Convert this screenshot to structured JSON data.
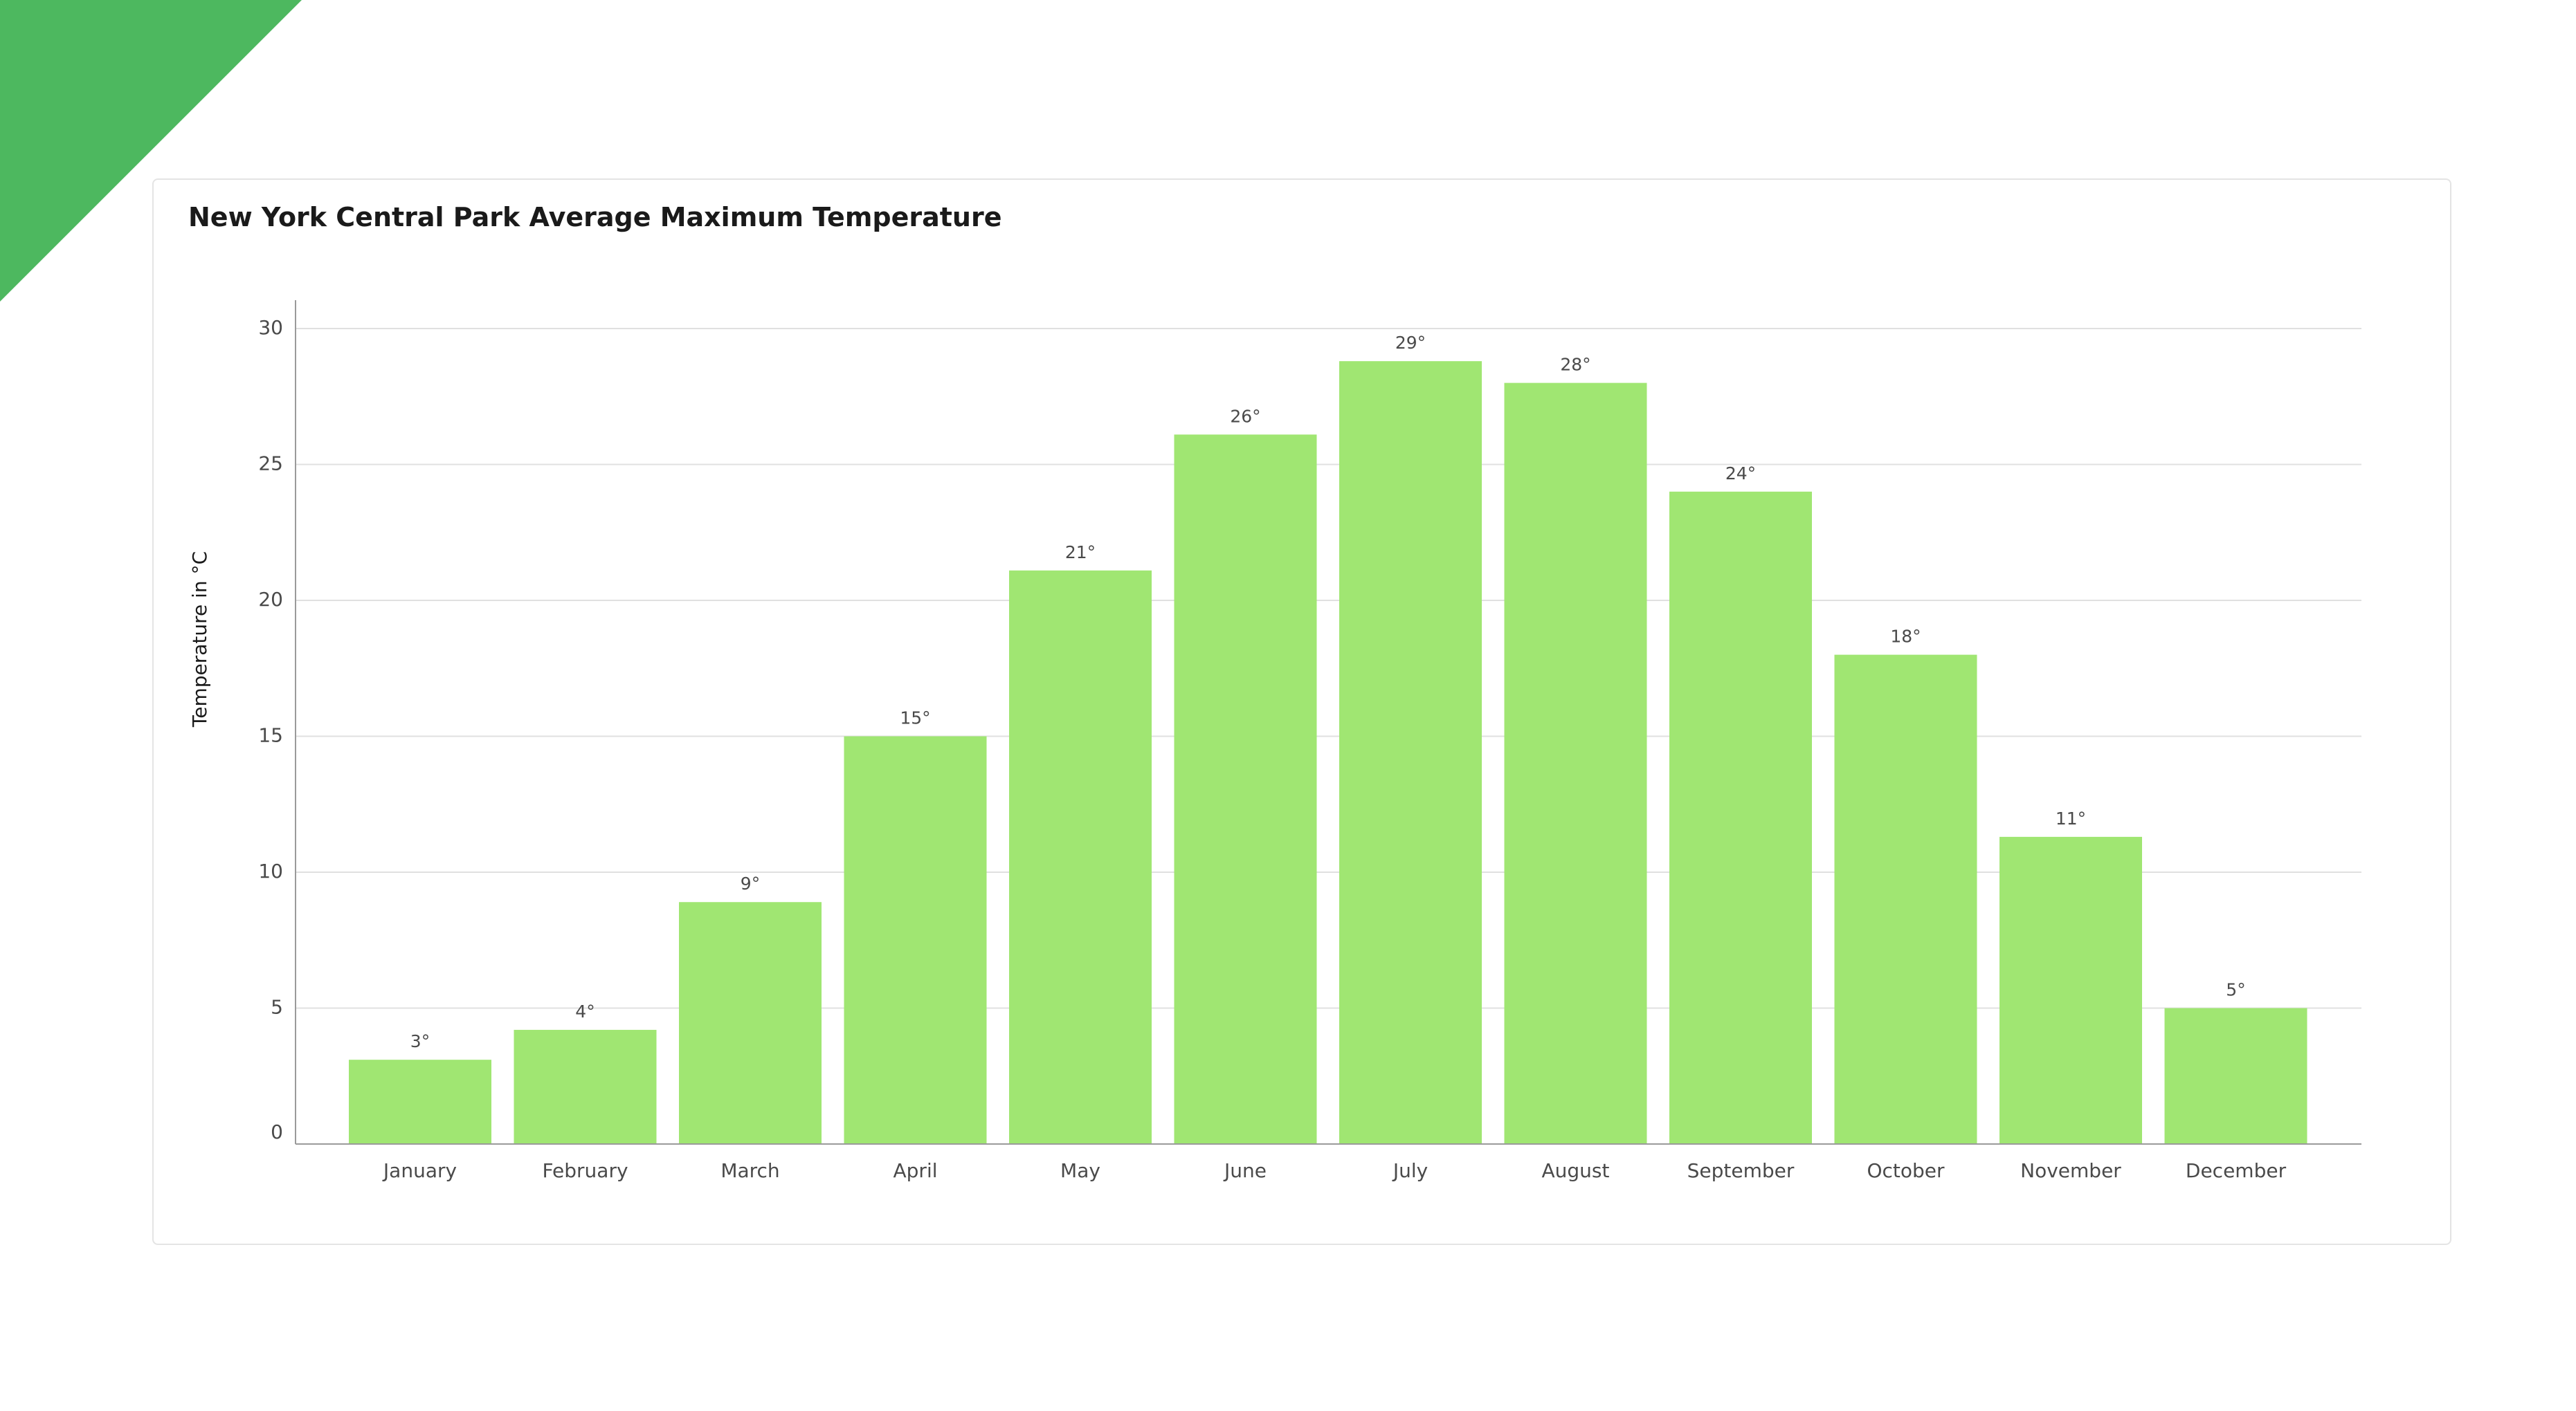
{
  "colors": {
    "accent": "#4db85f",
    "bar": "#a0e672",
    "grid": "#e0e0e0",
    "axis": "#9a9a9a",
    "text": "#4a4a4a",
    "title": "#1a1a1a"
  },
  "chart_data": {
    "type": "bar",
    "title": "New York Central Park Average Maximum Temperature",
    "xlabel": "",
    "ylabel": "Temperature in °C",
    "ylim": [
      0,
      30
    ],
    "yticks": [
      0,
      5,
      10,
      15,
      20,
      25,
      30
    ],
    "grid": true,
    "categories": [
      "January",
      "February",
      "March",
      "April",
      "May",
      "June",
      "July",
      "August",
      "September",
      "October",
      "November",
      "December"
    ],
    "values": [
      3.1,
      4.2,
      8.9,
      15,
      21.1,
      26.1,
      28.8,
      28,
      24,
      18,
      11.3,
      5
    ],
    "data_labels": [
      "3°",
      "4°",
      "9°",
      "15°",
      "21°",
      "26°",
      "29°",
      "28°",
      "24°",
      "18°",
      "11°",
      "5°"
    ]
  }
}
